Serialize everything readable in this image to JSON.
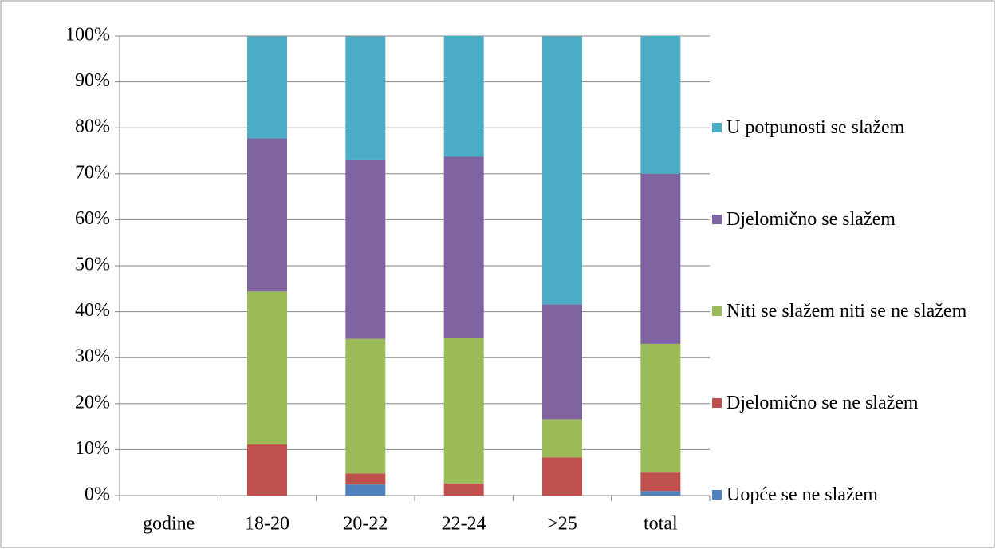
{
  "chart_data": {
    "type": "stacked_bar_percent",
    "categories": [
      "godine",
      "18-20",
      "20-22",
      "22-24",
      ">25",
      "total"
    ],
    "series": [
      {
        "name": "Uopće se ne slažem",
        "color": "#4f81bd",
        "values": [
          null,
          0,
          2.4,
          0,
          0,
          1.0
        ]
      },
      {
        "name": "Djelomično se ne slažem",
        "color": "#c0504d",
        "values": [
          null,
          11.1,
          2.4,
          2.6,
          8.3,
          4.0
        ]
      },
      {
        "name": "Niti se slažem niti se ne slažem",
        "color": "#9bbb59",
        "values": [
          null,
          33.3,
          29.3,
          31.6,
          8.3,
          28.0
        ]
      },
      {
        "name": "Djelomično se slažem",
        "color": "#8064a2",
        "values": [
          null,
          33.3,
          39.0,
          39.5,
          25.0,
          37.0
        ]
      },
      {
        "name": "U potpunosti se slažem",
        "color": "#4bacc6",
        "values": [
          null,
          22.2,
          26.8,
          26.3,
          58.3,
          30.0
        ]
      }
    ],
    "ylim": [
      0,
      100
    ],
    "yticks": [
      {
        "value": 0,
        "label": "0%"
      },
      {
        "value": 10,
        "label": "10%"
      },
      {
        "value": 20,
        "label": "20%"
      },
      {
        "value": 30,
        "label": "30%"
      },
      {
        "value": 40,
        "label": "40%"
      },
      {
        "value": 50,
        "label": "50%"
      },
      {
        "value": 60,
        "label": "60%"
      },
      {
        "value": 70,
        "label": "70%"
      },
      {
        "value": 80,
        "label": "80%"
      },
      {
        "value": 90,
        "label": "90%"
      },
      {
        "value": 100,
        "label": "100%"
      }
    ],
    "grid": true,
    "legend": "right"
  }
}
